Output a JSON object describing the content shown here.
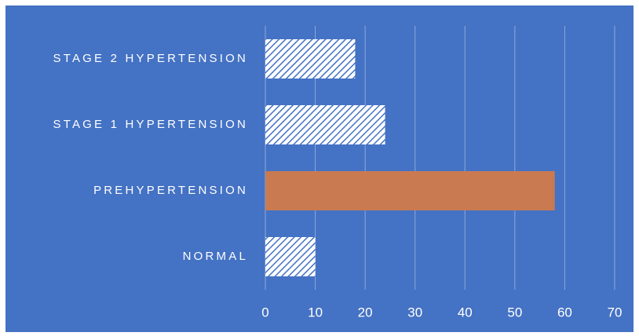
{
  "chart_data": {
    "type": "bar",
    "orientation": "horizontal",
    "categories": [
      "STAGE 2 HYPERTENSION",
      "STAGE 1 HYPERTENSION",
      "PREHYPERTENSION",
      "NORMAL"
    ],
    "values": [
      18,
      24,
      58,
      10
    ],
    "xlim": [
      0,
      70
    ],
    "xticks": [
      0,
      10,
      20,
      30,
      40,
      50,
      60,
      70
    ],
    "grid": true,
    "legend": "none",
    "colors": {
      "background": "#4472C4",
      "highlight_bar": "#C97A51",
      "hatched_bar_fill": "#FFFFFF",
      "hatched_bar_stripe": "#4472C4",
      "gridline": "#8FA9DC",
      "text": "#FFFFFF"
    },
    "highlighted_category": "PREHYPERTENSION"
  }
}
